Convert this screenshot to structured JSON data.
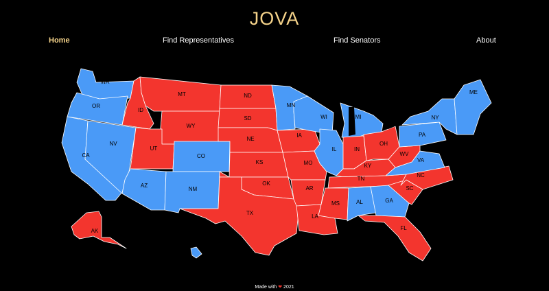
{
  "app": {
    "title": "JOVA"
  },
  "nav": {
    "home": "Home",
    "representatives": "Find Representatives",
    "senators": "Find Senators",
    "about": "About"
  },
  "colors": {
    "blue": "#4a9af7",
    "red": "#f3352e",
    "accent": "#f5d38a"
  },
  "map": {
    "states": {
      "WA": "blue",
      "OR": "blue",
      "CA": "blue",
      "NV": "blue",
      "ID": "red",
      "MT": "red",
      "WY": "red",
      "UT": "red",
      "CO": "blue",
      "AZ": "blue",
      "NM": "blue",
      "ND": "red",
      "SD": "red",
      "NE": "red",
      "KS": "red",
      "OK": "red",
      "TX": "red",
      "MN": "blue",
      "IA": "red",
      "MO": "red",
      "AR": "red",
      "LA": "red",
      "WI": "blue",
      "IL": "blue",
      "MI": "blue",
      "IN": "red",
      "OH": "red",
      "KY": "red",
      "TN": "red",
      "MS": "red",
      "AL": "blue",
      "GA": "blue",
      "FL": "red",
      "SC": "red",
      "NC": "red",
      "VA": "blue",
      "WV": "red",
      "PA": "blue",
      "NY": "blue",
      "ME": "blue",
      "AK": "red",
      "HI": "blue"
    }
  },
  "footer": {
    "made_with": "Made with",
    "heart": "❤",
    "year": "2021"
  }
}
